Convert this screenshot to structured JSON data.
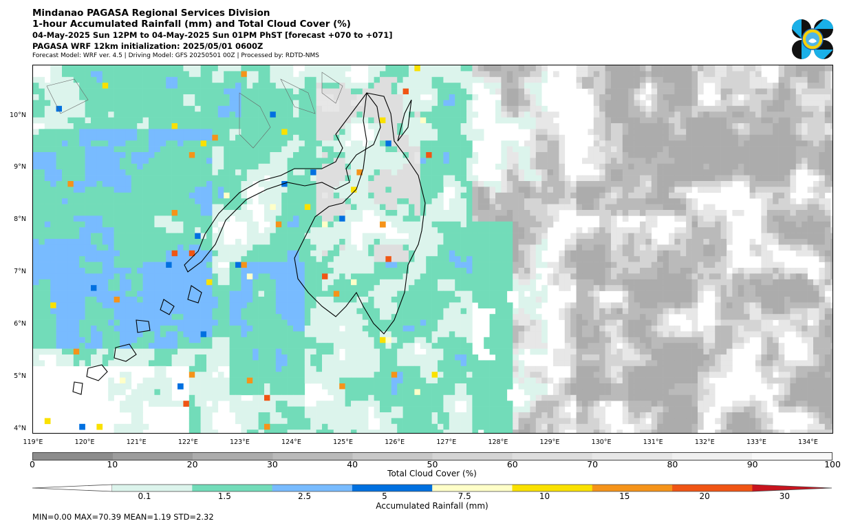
{
  "header": {
    "title": "Mindanao PAGASA Regional Services Division",
    "subtitle": "1-hour Accumulated Rainfall (mm) and Total Cloud Cover (%)",
    "valid_time": "04-May-2025 Sun 12PM to 04-May-2025 Sun 01PM PhST [forecast +070 to +071]",
    "init": "PAGASA WRF 12km initialization: 2025/05/01 0600Z",
    "model_info": "Forecast Model: WRF ver. 4.5 | Driving Model: GFS 20250501 00Z | Processed by: RDTD-NMS"
  },
  "map": {
    "lat_labels": [
      "10°N",
      "9°N",
      "8°N",
      "7°N",
      "6°N",
      "5°N",
      "4°N"
    ],
    "lon_labels": [
      "119°E",
      "120°E",
      "121°E",
      "122°E",
      "123°E",
      "124°E",
      "125°E",
      "126°E",
      "127°E",
      "128°E",
      "129°E",
      "130°E",
      "131°E",
      "132°E",
      "133°E",
      "134°E"
    ],
    "lon_range": [
      119,
      134.5
    ],
    "lat_range": [
      3.9,
      11
    ]
  },
  "cloud_colorbar": {
    "label": "Total Cloud Cover (%)",
    "ticks": [
      "0",
      "10",
      "20",
      "30",
      "40",
      "50",
      "60",
      "70",
      "80",
      "90",
      "100"
    ],
    "colors": [
      "#8c8c8c",
      "#9c9c9c",
      "#acacac",
      "#bababa",
      "#c8c8c8",
      "#d4d4d4",
      "#dedede",
      "#e7e7e7",
      "#f0f0f0",
      "#f8f8f8"
    ]
  },
  "rain_colorbar": {
    "label": "Accumulated Rainfall (mm)",
    "ticks": [
      "0.1",
      "1.5",
      "2.5",
      "5",
      "7.5",
      "10",
      "15",
      "20",
      "30"
    ],
    "colors": [
      "#dcf4ec",
      "#72dcb9",
      "#78bbff",
      "#0070e0",
      "#ffffc8",
      "#fae100",
      "#f59319",
      "#f05514",
      "#c8141e"
    ]
  },
  "stats": "MIN=0.00   MAX=70.39   MEAN=1.19   STD=2.32"
}
